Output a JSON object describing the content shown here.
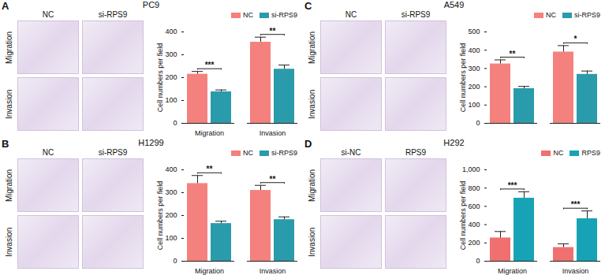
{
  "chart_data": [
    {
      "panel": "A",
      "title": "PC9",
      "image_columns": [
        "NC",
        "si-RPS9"
      ],
      "image_rows": [
        "Migration",
        "Invasion"
      ],
      "type": "bar",
      "ylabel": "Cell numbers per field",
      "categories": [
        "Migration",
        "Invasion"
      ],
      "series": [
        {
          "name": "NC",
          "color": "#f4817d",
          "values": [
            215,
            355
          ],
          "errors": [
            12,
            22
          ]
        },
        {
          "name": "si-RPS9",
          "color": "#2a9bab",
          "values": [
            138,
            237
          ],
          "errors": [
            8,
            18
          ]
        }
      ],
      "significance": [
        "***",
        "**"
      ],
      "ylim": [
        0,
        400
      ],
      "yticks": [
        0,
        100,
        200,
        300,
        400
      ],
      "legend": "top-right"
    },
    {
      "panel": "C",
      "title": "A549",
      "image_columns": [
        "NC",
        "si-RPS9"
      ],
      "image_rows": [
        "Migration",
        "Invasion"
      ],
      "type": "bar",
      "ylabel": "Cell numbers per field",
      "categories": [
        null,
        null
      ],
      "series": [
        {
          "name": "NC",
          "color": "#f4817d",
          "values": [
            325,
            390
          ],
          "errors": [
            22,
            35
          ]
        },
        {
          "name": "si-RPS9",
          "color": "#2a9bab",
          "values": [
            190,
            268
          ],
          "errors": [
            12,
            18
          ]
        }
      ],
      "significance": [
        "**",
        "*"
      ],
      "ylim": [
        0,
        500
      ],
      "yticks": [
        0,
        100,
        200,
        300,
        400,
        500
      ],
      "legend": "top-right"
    },
    {
      "panel": "B",
      "title": "H1299",
      "image_columns": [
        "NC",
        "si-RPS9"
      ],
      "image_rows": [
        "Migration",
        "Invasion"
      ],
      "type": "bar",
      "ylabel": "Cell numbers per field",
      "categories": [
        "Migration",
        "Invasion"
      ],
      "series": [
        {
          "name": "NC",
          "color": "#f4817d",
          "values": [
            340,
            310
          ],
          "errors": [
            35,
            22
          ]
        },
        {
          "name": "si-RPS9",
          "color": "#2a9bab",
          "values": [
            165,
            182
          ],
          "errors": [
            10,
            12
          ]
        }
      ],
      "significance": [
        "**",
        "**"
      ],
      "ylim": [
        0,
        400
      ],
      "yticks": [
        0,
        100,
        200,
        300,
        400
      ],
      "legend": "top-right"
    },
    {
      "panel": "D",
      "title": "H292",
      "image_columns": [
        "si-NC",
        "RPS9"
      ],
      "image_rows": [
        "Migration",
        "Invasion"
      ],
      "type": "bar",
      "ylabel": "Cell numbers per field",
      "categories": [
        "Migration",
        "Invasion"
      ],
      "series": [
        {
          "name": "NC",
          "color": "#f07070",
          "values": [
            255,
            150
          ],
          "errors": [
            70,
            40
          ]
        },
        {
          "name": "RPS9",
          "color": "#17a3b5",
          "values": [
            690,
            465
          ],
          "errors": [
            70,
            85
          ]
        }
      ],
      "significance": [
        "***",
        "***"
      ],
      "ylim": [
        0,
        1000
      ],
      "yticks": [
        0,
        200,
        400,
        600,
        800,
        1000
      ],
      "legend": "top-right"
    }
  ]
}
